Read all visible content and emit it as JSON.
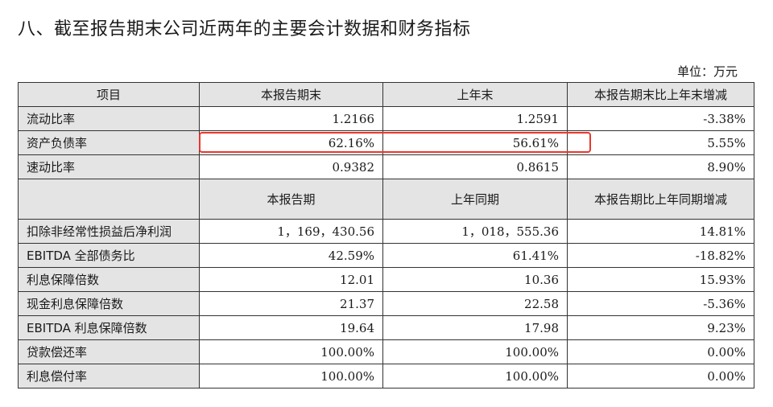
{
  "title": "八、截至报告期末公司近两年的主要会计数据和财务指标",
  "unit": "单位：万元",
  "header": {
    "col_item": "项目",
    "col_current": "本报告期末",
    "col_prior": "上年末",
    "col_change": "本报告期末比上年末增减"
  },
  "section1_rows": [
    {
      "label": "流动比率",
      "current": "1.2166",
      "prior": "1.2591",
      "change": "-3.38%"
    },
    {
      "label": "资产负债率",
      "current": "62.16%",
      "prior": "56.61%",
      "change": "5.55%"
    },
    {
      "label": "速动比率",
      "current": "0.9382",
      "prior": "0.8615",
      "change": "8.90%"
    }
  ],
  "subheader": {
    "col_current": "本报告期",
    "col_prior": "上年同期",
    "col_change": "本报告期比上年同期增减"
  },
  "section2_rows": [
    {
      "label": "扣除非经常性损益后净利润",
      "current": "1，169，430.56",
      "prior": "1，018，555.36",
      "change": "14.81%"
    },
    {
      "label": "EBITDA 全部债务比",
      "current": "42.59%",
      "prior": "61.41%",
      "change": "-18.82%"
    },
    {
      "label": "利息保障倍数",
      "current": "12.01",
      "prior": "10.36",
      "change": "15.93%"
    },
    {
      "label": "现金利息保障倍数",
      "current": "21.37",
      "prior": "22.58",
      "change": "-5.36%"
    },
    {
      "label": "EBITDA 利息保障倍数",
      "current": "19.64",
      "prior": "17.98",
      "change": "9.23%"
    },
    {
      "label": "贷款偿还率",
      "current": "100.00%",
      "prior": "100.00%",
      "change": "0.00%"
    },
    {
      "label": "利息偿付率",
      "current": "100.00%",
      "prior": "100.00%",
      "change": "0.00%"
    }
  ],
  "colors": {
    "header_bg": "#e4e4e4",
    "border": "#333333",
    "highlight": "#e8382e"
  }
}
